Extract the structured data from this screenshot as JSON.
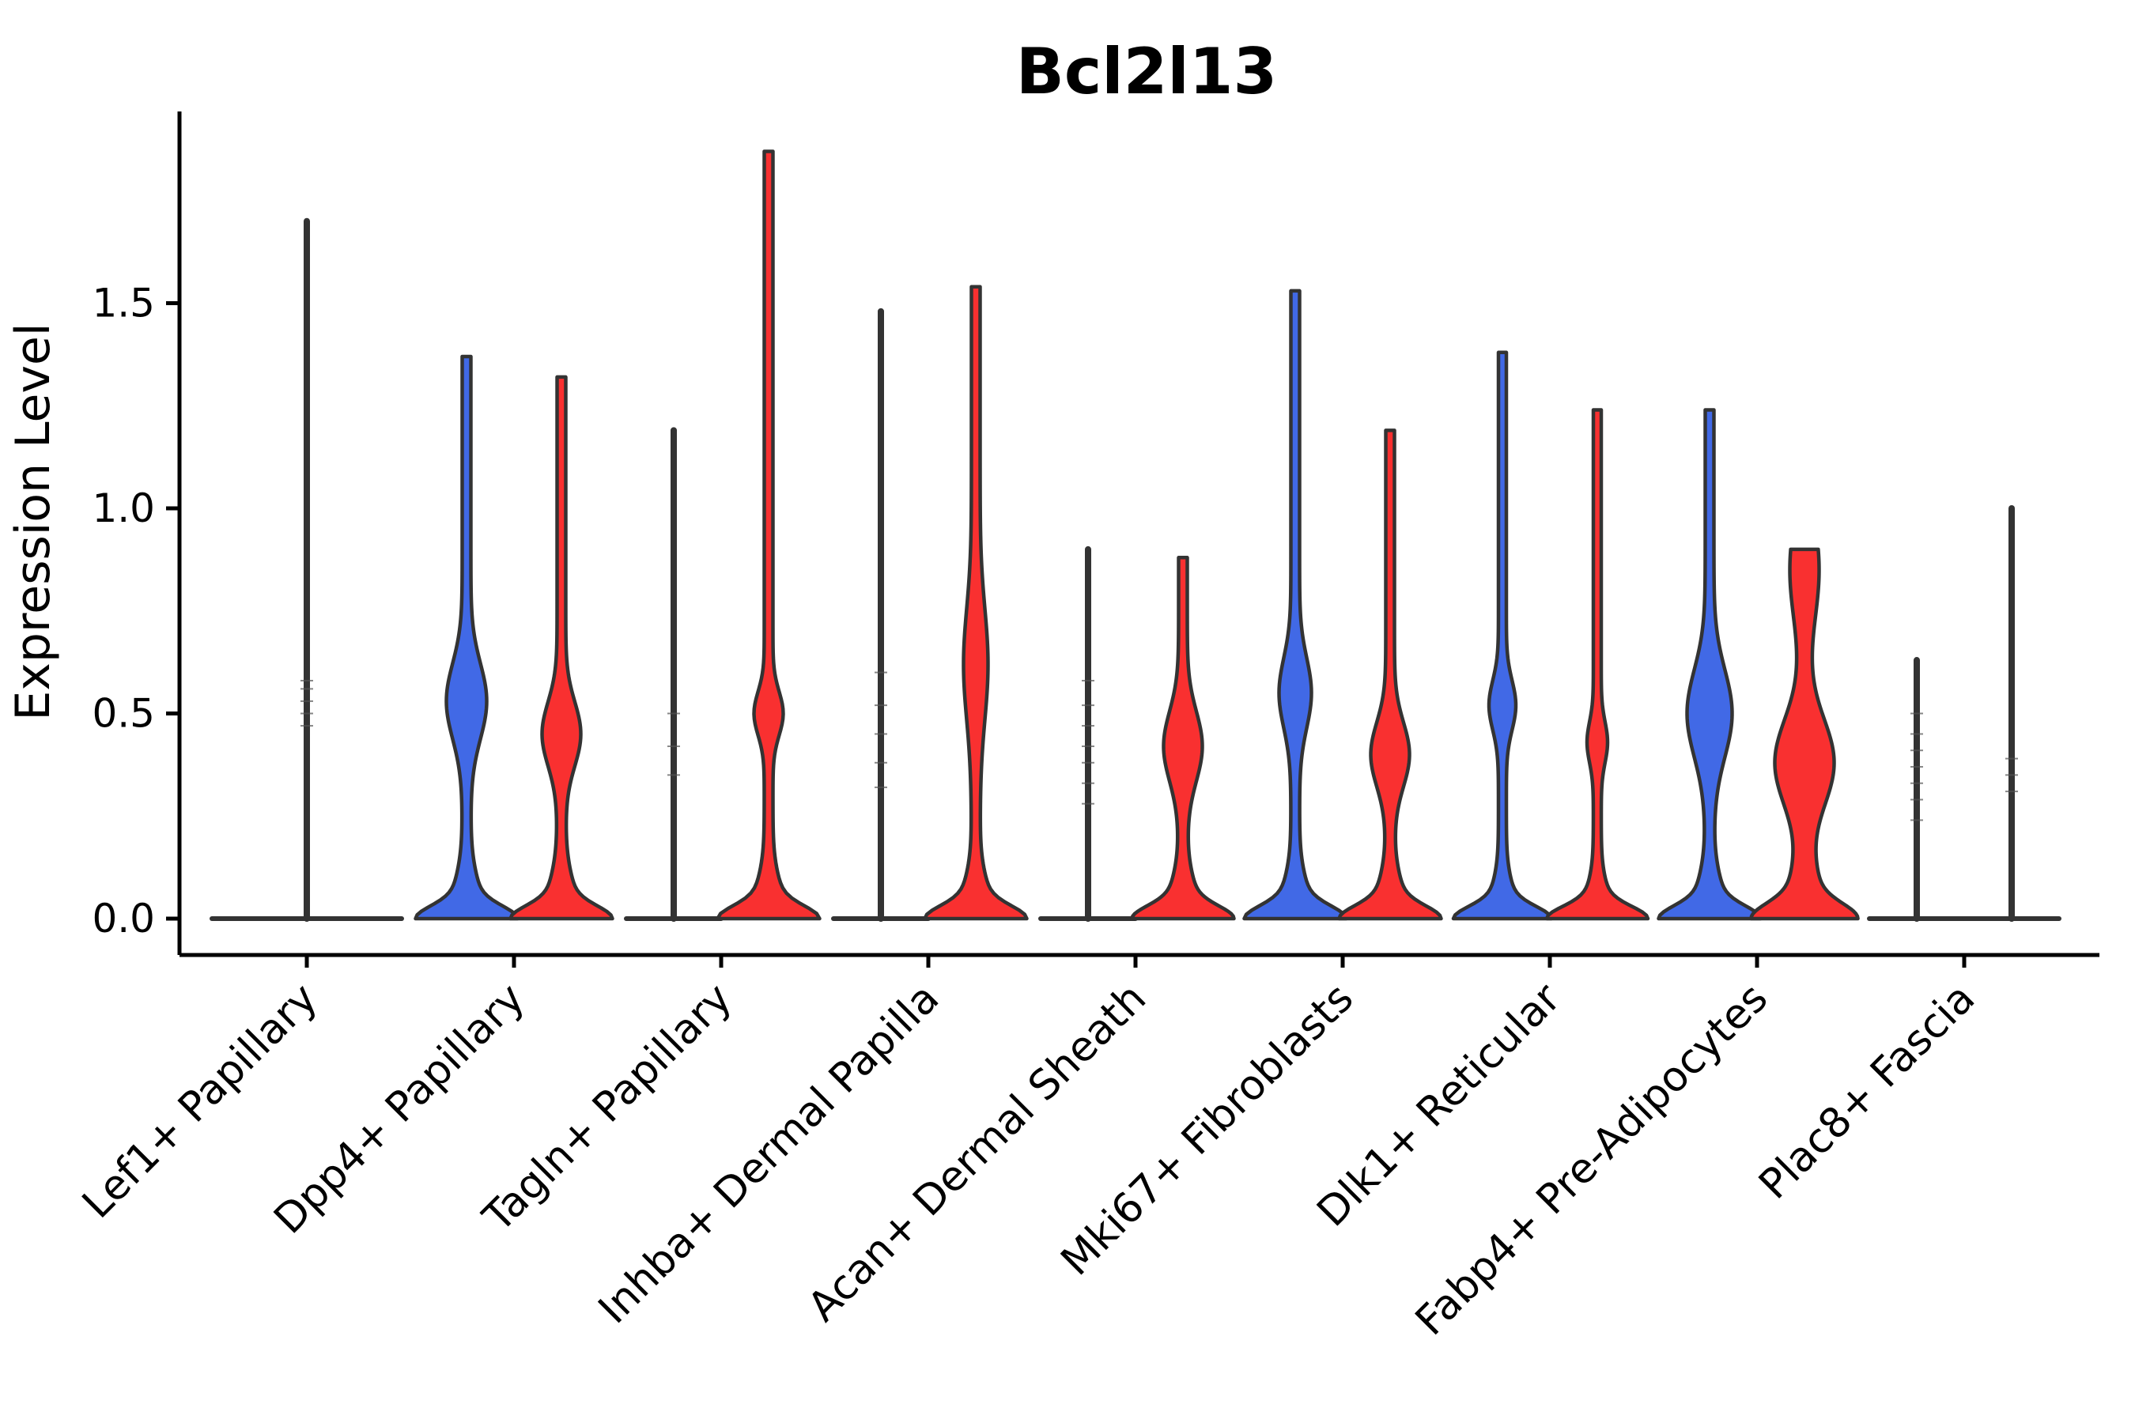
{
  "chart_data": {
    "type": "violin",
    "title": "Bcl2l13",
    "ylabel": "Expression Level",
    "ylim": [
      0,
      1.97
    ],
    "yticks": [
      {
        "value": 0.0,
        "label": "0.0"
      },
      {
        "value": 0.5,
        "label": "0.5"
      },
      {
        "value": 1.0,
        "label": "1.0"
      },
      {
        "value": 1.5,
        "label": "1.5"
      }
    ],
    "grid": false,
    "legend": "none",
    "colors": {
      "blue": "#4169E6",
      "red": "#F93030",
      "outline": "#333333",
      "axis": "#000000"
    },
    "categories": [
      "Lef1+ Papillary",
      "Dpp4+ Papillary",
      "Tagln+ Papillary",
      "Inhba+ Dermal Papilla",
      "Acan+ Dermal Sheath",
      "Mki67+ Fibroblasts",
      "Dlk1+ Reticular",
      "Fabp4+ Pre-Adipocytes",
      "Plac8+ Fascia"
    ],
    "violin_note": "bumps are [center_value, sigma_value, half_width_px]; collapsed violins render as a flat base line plus a thin vertical spike to max; dashes are expression values of faint data ticks",
    "groups": [
      {
        "category": "Lef1+ Papillary",
        "violins": [
          {
            "style": "collapsed",
            "side": "center",
            "max": 1.7,
            "base_halfwidth": 120,
            "dashes": [
              0.47,
              0.5,
              0.53,
              0.56,
              0.58
            ]
          }
        ]
      },
      {
        "category": "Dpp4+ Papillary",
        "violins": [
          {
            "style": "filled",
            "side": "left",
            "color": "blue",
            "max": 1.37,
            "stem": 5.5,
            "bumps": [
              [
                0,
                0.042,
                42
              ],
              [
                0,
                0.115,
                17
              ],
              [
                0.53,
                0.13,
                20
              ]
            ]
          },
          {
            "style": "filled",
            "side": "right",
            "color": "red",
            "max": 1.32,
            "stem": 5.5,
            "bumps": [
              [
                0,
                0.042,
                42
              ],
              [
                0,
                0.115,
                17
              ],
              [
                0.45,
                0.11,
                19
              ]
            ]
          }
        ]
      },
      {
        "category": "Tagln+ Papillary",
        "violins": [
          {
            "style": "collapsed",
            "side": "left",
            "max": 1.19,
            "base_halfwidth": 60,
            "dashes": [
              0.35,
              0.42,
              0.5
            ]
          },
          {
            "style": "filled",
            "side": "right",
            "color": "red",
            "max": 1.87,
            "stem": 5.5,
            "bumps": [
              [
                0,
                0.042,
                42
              ],
              [
                0,
                0.11,
                17
              ],
              [
                0.5,
                0.075,
                13
              ]
            ]
          }
        ]
      },
      {
        "category": "Inhba+ Dermal Papilla",
        "violins": [
          {
            "style": "collapsed",
            "side": "left",
            "max": 1.48,
            "base_halfwidth": 60,
            "dashes": [
              0.32,
              0.38,
              0.45,
              0.52,
              0.6
            ]
          },
          {
            "style": "filled",
            "side": "right",
            "color": "red",
            "max": 1.54,
            "stem": 5.5,
            "bumps": [
              [
                0,
                0.042,
                42
              ],
              [
                0,
                0.11,
                17
              ],
              [
                0.62,
                0.19,
                10
              ]
            ]
          }
        ]
      },
      {
        "category": "Acan+ Dermal Sheath",
        "violins": [
          {
            "style": "collapsed",
            "side": "left",
            "max": 0.9,
            "base_halfwidth": 60,
            "dashes": [
              0.28,
              0.33,
              0.38,
              0.42,
              0.47,
              0.52,
              0.58
            ]
          },
          {
            "style": "filled",
            "side": "right",
            "color": "red",
            "max": 0.88,
            "stem": 5.5,
            "bumps": [
              [
                0,
                0.042,
                42
              ],
              [
                0,
                0.11,
                17
              ],
              [
                0.42,
                0.12,
                19
              ]
            ]
          }
        ]
      },
      {
        "category": "Mki67+ Fibroblasts",
        "violins": [
          {
            "style": "filled",
            "side": "left",
            "color": "blue",
            "max": 1.53,
            "stem": 5.5,
            "bumps": [
              [
                0,
                0.042,
                42
              ],
              [
                0,
                0.11,
                17
              ],
              [
                0.55,
                0.12,
                15
              ]
            ]
          },
          {
            "style": "filled",
            "side": "right",
            "color": "red",
            "max": 1.19,
            "stem": 5.5,
            "bumps": [
              [
                0,
                0.042,
                42
              ],
              [
                0,
                0.11,
                17
              ],
              [
                0.4,
                0.11,
                19
              ]
            ]
          }
        ]
      },
      {
        "category": "Dlk1+ Reticular",
        "violins": [
          {
            "style": "filled",
            "side": "left",
            "color": "blue",
            "max": 1.38,
            "stem": 5.0,
            "bumps": [
              [
                0,
                0.04,
                42
              ],
              [
                0,
                0.1,
                15
              ],
              [
                0.52,
                0.085,
                12
              ]
            ]
          },
          {
            "style": "filled",
            "side": "right",
            "color": "red",
            "max": 1.24,
            "stem": 5.0,
            "bumps": [
              [
                0,
                0.04,
                44
              ],
              [
                0,
                0.095,
                15
              ],
              [
                0.43,
                0.07,
                8
              ]
            ]
          }
        ]
      },
      {
        "category": "Fabp4+ Pre-Adipocytes",
        "violins": [
          {
            "style": "filled",
            "side": "left",
            "color": "blue",
            "max": 1.24,
            "stem": 5.5,
            "bumps": [
              [
                0,
                0.042,
                42
              ],
              [
                0,
                0.115,
                17
              ],
              [
                0.5,
                0.15,
                23
              ]
            ]
          },
          {
            "style": "filled",
            "side": "right",
            "color": "red",
            "max": 0.9,
            "stem": 5.5,
            "bumps": [
              [
                0,
                0.05,
                42
              ],
              [
                0,
                0.14,
                20
              ],
              [
                0.38,
                0.15,
                32
              ],
              [
                0.85,
                0.17,
                13
              ]
            ]
          }
        ]
      },
      {
        "category": "Plac8+ Fascia",
        "violins": [
          {
            "style": "collapsed",
            "side": "left",
            "max": 0.63,
            "base_halfwidth": 60,
            "dashes": [
              0.24,
              0.29,
              0.33,
              0.37,
              0.41,
              0.45,
              0.5
            ]
          },
          {
            "style": "collapsed",
            "side": "right",
            "max": 1.0,
            "base_halfwidth": 60,
            "dashes": [
              0.31,
              0.35,
              0.39
            ]
          }
        ]
      }
    ]
  }
}
